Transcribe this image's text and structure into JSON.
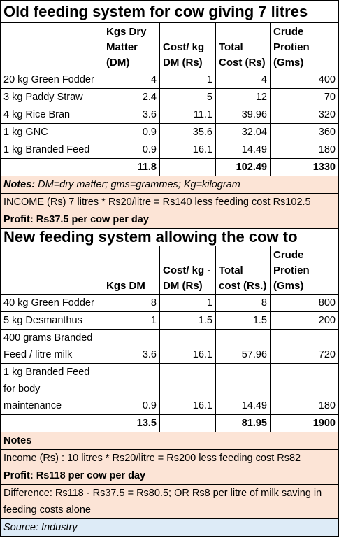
{
  "old": {
    "title": "Old feeding system for cow giving 7 litres",
    "headers": [
      "",
      "Kgs Dry Matter (DM)",
      "Cost/ kg DM (Rs)",
      "Total Cost (Rs)",
      "Crude Protien (Gms)"
    ],
    "rows": [
      [
        "20 kg Green Fodder",
        "4",
        "1",
        "4",
        "400"
      ],
      [
        "3 kg Paddy Straw",
        "2.4",
        "5",
        "12",
        "70"
      ],
      [
        "4 kg Rice Bran",
        "3.6",
        "11.1",
        "39.96",
        "320"
      ],
      [
        "1 kg GNC",
        "0.9",
        "35.6",
        "32.04",
        "360"
      ],
      [
        "1 kg Branded Feed",
        "0.9",
        "16.1",
        "14.49",
        "180"
      ]
    ],
    "totals": [
      "",
      "11.8",
      "",
      "102.49",
      "1330"
    ],
    "notes_label": "Notes:",
    "notes_text": " DM=dry matter; gms=grammes; Kg=kilogram",
    "income": "INCOME (Rs) 7 litres * Rs20/litre = Rs140 less feeding cost Rs102.5",
    "profit_label": "Profit:",
    "profit_text": " Rs37.5 per cow per day"
  },
  "new": {
    "title": "New feeding system allowing the cow to",
    "headers": [
      "",
      "Kgs DM",
      "Cost/ kg - DM (Rs)",
      "Total cost (Rs.)",
      "Crude Protien (Gms)"
    ],
    "rows": [
      [
        "40 kg Green Fodder",
        "8",
        "1",
        "8",
        "800"
      ],
      [
        "5 kg Desmanthus",
        "1",
        "1.5",
        "1.5",
        "200"
      ],
      [
        "400 grams Branded Feed / litre milk",
        "3.6",
        "16.1",
        "57.96",
        "720"
      ],
      [
        "1 kg Branded Feed for body maintenance",
        "0.9",
        "16.1",
        "14.49",
        "180"
      ]
    ],
    "totals": [
      "",
      "13.5",
      "",
      "81.95",
      "1900"
    ],
    "notes_label": "Notes",
    "income": "Income (Rs) : 10 litres * Rs20/litre = Rs200 less feeding cost Rs82",
    "profit_label": "Profit:",
    "profit_text": " Rs118 per cow per day",
    "difference": "Difference: Rs118 - Rs37.5 = Rs80.5; OR Rs8 per litre of milk saving in feeding costs alone"
  },
  "source": "Source: Industry",
  "colors": {
    "notes_bg": "#fce4d6",
    "source_bg": "#ddebf7"
  }
}
